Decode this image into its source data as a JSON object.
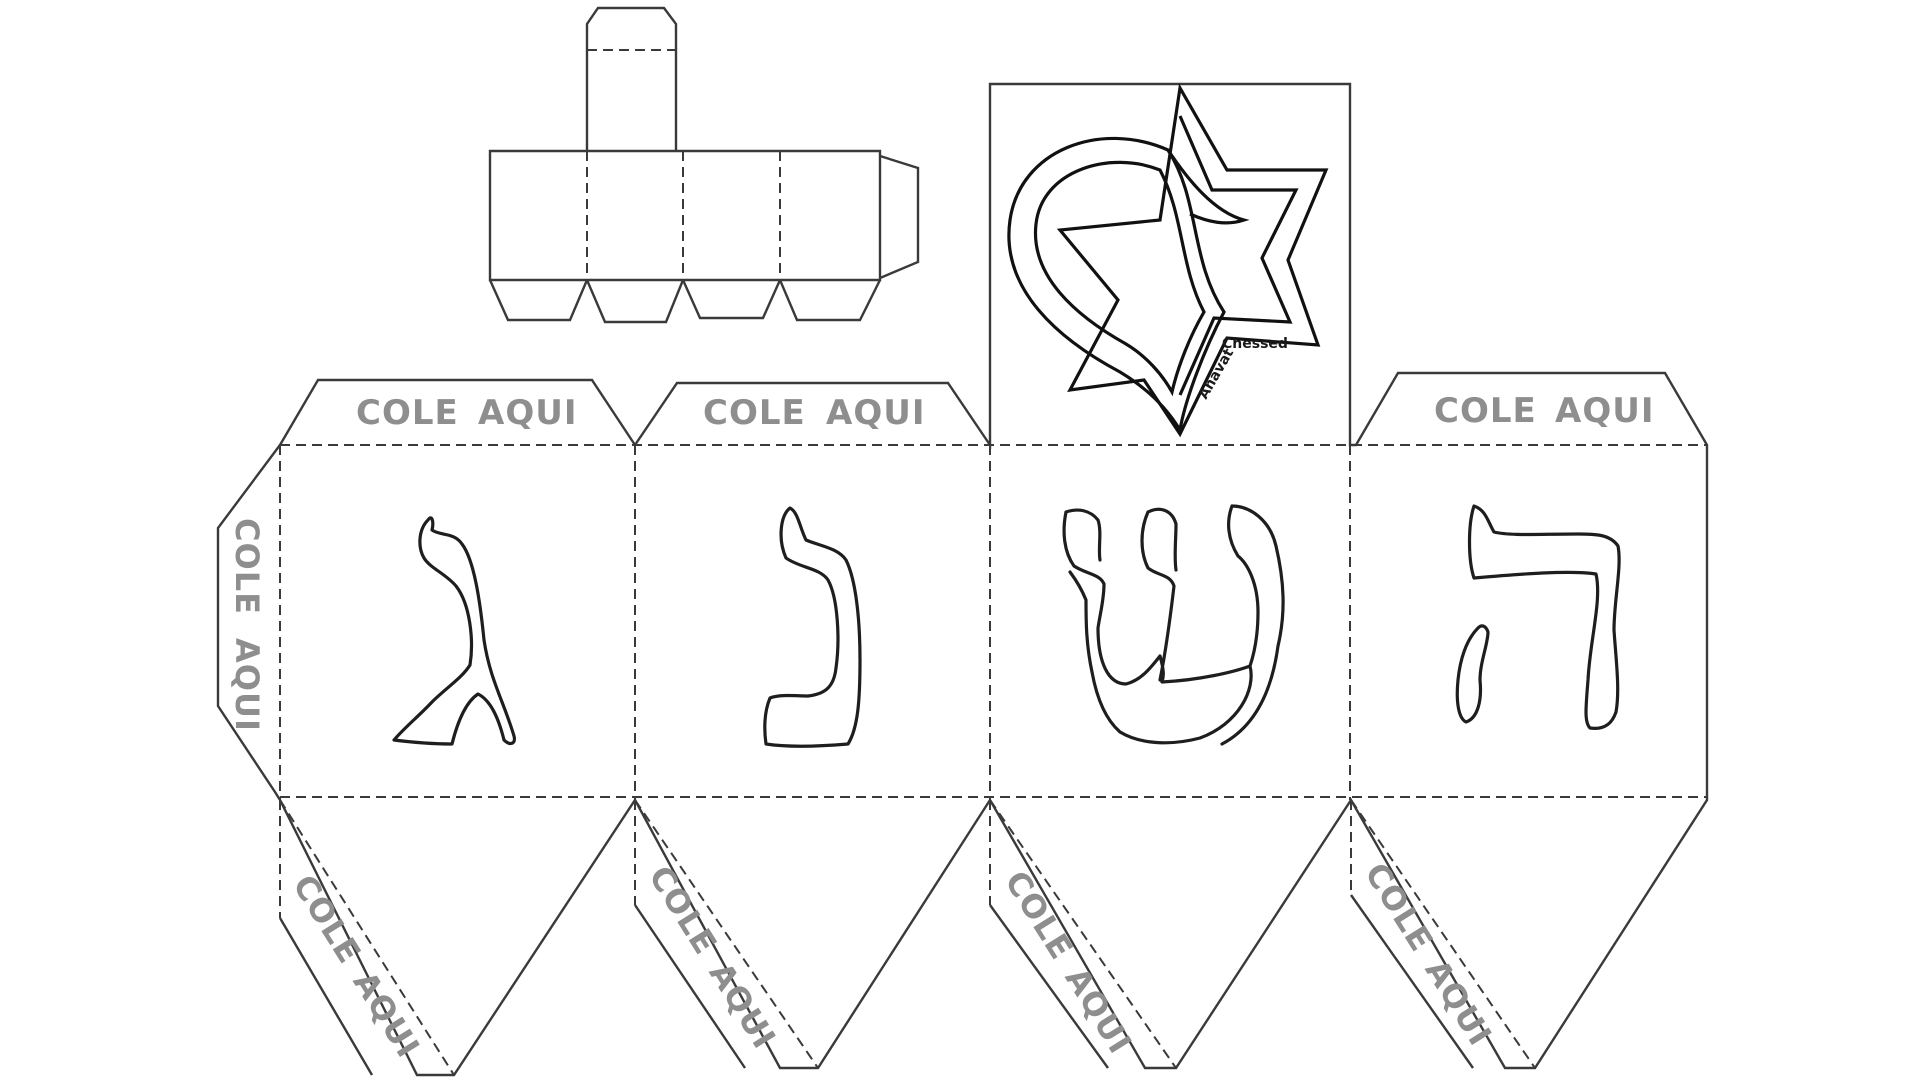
{
  "template": {
    "glue_label_part1": "COLE",
    "glue_label_part2": "AQUI",
    "faces": [
      {
        "letter_name": "gimel"
      },
      {
        "letter_name": "nun"
      },
      {
        "letter_name": "shin"
      },
      {
        "letter_name": "he"
      }
    ]
  },
  "logo": {
    "word1": "Ahavat",
    "word2": "Chessed",
    "icon": "heart-star-icon"
  },
  "colors": {
    "glue_text": "#8e8e8e",
    "lines": "#3a3a3a"
  }
}
